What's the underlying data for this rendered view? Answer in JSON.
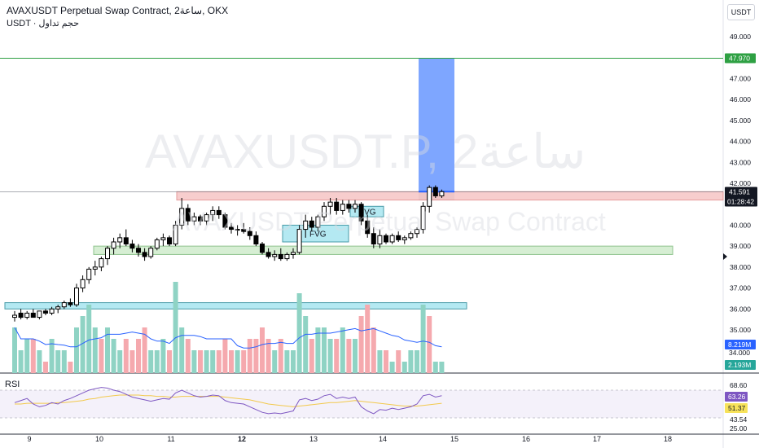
{
  "header": {
    "title": "AVAXUSDT Perpetual Swap Contract, 2ساعة, OKX",
    "volume_label": "USDT · حجم تداول"
  },
  "currency_button": "USDT",
  "watermark": {
    "symbol": "AVAXUSDT.P, 2ساعة",
    "name": "AVAXUSDT Perpetual Swap Contract"
  },
  "rsi_label": "RSI",
  "chart_data": {
    "type": "candlestick",
    "price_axis": {
      "min": 33,
      "max": 50,
      "ticks": [
        35,
        36,
        37,
        38,
        39,
        40,
        41,
        42,
        43,
        44,
        45,
        46,
        47,
        48,
        49
      ],
      "tick_labels": [
        "35.000",
        "36.000",
        "37.000",
        "38.000",
        "39.000",
        "40.000",
        "41.000",
        "42.000",
        "43.000",
        "44.000",
        "45.000",
        "46.000",
        "47.000",
        "48.000",
        "49.000"
      ]
    },
    "x_axis": {
      "labels": [
        "9",
        "10",
        "11",
        "12",
        "13",
        "14",
        "15",
        "16",
        "17",
        "18"
      ],
      "bold_label": "12"
    },
    "candles_ohlc": [
      [
        35.6,
        35.9,
        35.4,
        35.7
      ],
      [
        35.8,
        36.0,
        35.5,
        35.6
      ],
      [
        35.6,
        35.9,
        35.5,
        35.8
      ],
      [
        35.8,
        36.0,
        35.6,
        35.6
      ],
      [
        35.6,
        35.9,
        35.5,
        35.9
      ],
      [
        35.9,
        36.0,
        35.7,
        35.8
      ],
      [
        35.8,
        36.1,
        35.7,
        36.0
      ],
      [
        36.0,
        36.2,
        35.8,
        36.1
      ],
      [
        36.1,
        36.4,
        36.0,
        36.3
      ],
      [
        36.3,
        36.5,
        36.1,
        36.2
      ],
      [
        36.2,
        37.2,
        36.1,
        37.0
      ],
      [
        37.0,
        37.6,
        36.8,
        37.4
      ],
      [
        37.4,
        38.0,
        37.2,
        37.9
      ],
      [
        37.9,
        38.3,
        37.6,
        38.0
      ],
      [
        38.0,
        38.5,
        37.8,
        38.4
      ],
      [
        38.4,
        39.0,
        38.1,
        38.9
      ],
      [
        38.9,
        39.4,
        38.6,
        39.2
      ],
      [
        39.2,
        39.6,
        38.9,
        39.4
      ],
      [
        39.4,
        39.8,
        39.0,
        39.1
      ],
      [
        39.1,
        39.3,
        38.7,
        38.9
      ],
      [
        38.9,
        39.1,
        38.5,
        38.7
      ],
      [
        38.7,
        38.9,
        38.3,
        38.5
      ],
      [
        38.5,
        39.0,
        38.4,
        38.9
      ],
      [
        38.9,
        39.4,
        38.8,
        39.3
      ],
      [
        39.3,
        39.6,
        39.0,
        39.4
      ],
      [
        39.4,
        39.5,
        39.0,
        39.1
      ],
      [
        39.1,
        40.2,
        39.0,
        40.0
      ],
      [
        40.0,
        41.3,
        39.8,
        40.8
      ],
      [
        40.8,
        41.0,
        40.0,
        40.2
      ],
      [
        40.2,
        40.6,
        40.0,
        40.4
      ],
      [
        40.4,
        40.5,
        40.0,
        40.2
      ],
      [
        40.2,
        40.6,
        40.0,
        40.5
      ],
      [
        40.5,
        40.9,
        40.2,
        40.7
      ],
      [
        40.7,
        40.9,
        40.3,
        40.5
      ],
      [
        40.5,
        40.6,
        39.8,
        39.9
      ],
      [
        39.9,
        40.1,
        39.6,
        39.8
      ],
      [
        39.8,
        40.0,
        39.5,
        39.8
      ],
      [
        39.8,
        40.1,
        39.6,
        39.7
      ],
      [
        39.7,
        39.9,
        39.3,
        39.5
      ],
      [
        39.5,
        39.7,
        39.0,
        39.1
      ],
      [
        39.1,
        39.2,
        38.6,
        38.7
      ],
      [
        38.7,
        38.9,
        38.4,
        38.5
      ],
      [
        38.5,
        38.8,
        38.3,
        38.6
      ],
      [
        38.6,
        38.9,
        38.3,
        38.4
      ],
      [
        38.4,
        38.7,
        38.3,
        38.6
      ],
      [
        38.6,
        38.9,
        38.4,
        38.7
      ],
      [
        38.7,
        40.0,
        38.6,
        39.8
      ],
      [
        39.8,
        40.5,
        39.4,
        40.2
      ],
      [
        40.2,
        40.4,
        39.7,
        39.9
      ],
      [
        39.9,
        40.5,
        39.7,
        40.4
      ],
      [
        40.4,
        41.1,
        40.2,
        40.9
      ],
      [
        40.9,
        41.3,
        40.5,
        41.1
      ],
      [
        41.1,
        41.3,
        40.5,
        40.7
      ],
      [
        40.7,
        41.2,
        40.5,
        41.0
      ],
      [
        41.0,
        41.2,
        40.6,
        40.8
      ],
      [
        40.8,
        41.2,
        40.6,
        41.0
      ],
      [
        41.0,
        41.1,
        40.0,
        40.2
      ],
      [
        40.2,
        40.5,
        39.4,
        39.6
      ],
      [
        39.6,
        39.9,
        38.9,
        39.1
      ],
      [
        39.1,
        39.8,
        38.9,
        39.5
      ],
      [
        39.5,
        39.6,
        39.1,
        39.2
      ],
      [
        39.2,
        39.6,
        39.1,
        39.5
      ],
      [
        39.5,
        39.7,
        39.2,
        39.3
      ],
      [
        39.3,
        39.5,
        39.1,
        39.4
      ],
      [
        39.4,
        39.7,
        39.3,
        39.6
      ],
      [
        39.6,
        39.9,
        39.4,
        39.8
      ],
      [
        39.8,
        41.1,
        39.6,
        40.9
      ],
      [
        40.9,
        41.9,
        40.6,
        41.8
      ],
      [
        41.8,
        41.9,
        41.3,
        41.4
      ],
      [
        41.4,
        41.7,
        41.3,
        41.6
      ]
    ],
    "volume": [
      [
        4,
        1
      ],
      [
        2,
        1
      ],
      [
        3,
        1
      ],
      [
        3,
        0
      ],
      [
        2,
        1
      ],
      [
        1,
        0
      ],
      [
        3,
        1
      ],
      [
        2,
        1
      ],
      [
        2,
        1
      ],
      [
        1,
        0
      ],
      [
        4,
        1
      ],
      [
        5,
        1
      ],
      [
        6,
        1
      ],
      [
        4,
        1
      ],
      [
        3,
        0
      ],
      [
        4,
        1
      ],
      [
        3,
        1
      ],
      [
        2,
        1
      ],
      [
        3,
        0
      ],
      [
        2,
        0
      ],
      [
        3,
        0
      ],
      [
        4,
        0
      ],
      [
        2,
        1
      ],
      [
        2,
        1
      ],
      [
        3,
        1
      ],
      [
        2,
        0
      ],
      [
        8,
        1
      ],
      [
        4,
        1
      ],
      [
        3,
        0
      ],
      [
        2,
        1
      ],
      [
        2,
        0
      ],
      [
        2,
        1
      ],
      [
        2,
        1
      ],
      [
        2,
        0
      ],
      [
        3,
        0
      ],
      [
        2,
        0
      ],
      [
        2,
        1
      ],
      [
        2,
        0
      ],
      [
        3,
        0
      ],
      [
        3,
        0
      ],
      [
        4,
        0
      ],
      [
        3,
        0
      ],
      [
        2,
        1
      ],
      [
        3,
        0
      ],
      [
        2,
        1
      ],
      [
        2,
        1
      ],
      [
        7,
        1
      ],
      [
        5,
        1
      ],
      [
        3,
        0
      ],
      [
        4,
        1
      ],
      [
        4,
        1
      ],
      [
        3,
        1
      ],
      [
        3,
        0
      ],
      [
        4,
        1
      ],
      [
        3,
        0
      ],
      [
        3,
        1
      ],
      [
        5,
        0
      ],
      [
        6,
        0
      ],
      [
        4,
        0
      ],
      [
        2,
        1
      ],
      [
        2,
        0
      ],
      [
        1,
        1
      ],
      [
        2,
        0
      ],
      [
        1,
        1
      ],
      [
        2,
        1
      ],
      [
        2,
        1
      ],
      [
        6,
        1
      ],
      [
        5,
        0
      ],
      [
        1,
        1
      ],
      [
        1,
        1
      ]
    ],
    "levels": {
      "target_line": 47.97,
      "current_price": 41.591,
      "countdown": "01:28:42",
      "volume_value": "8.219M",
      "volume_value_2": "2.193M"
    },
    "zones": [
      {
        "kind": "supply",
        "top": 41.6,
        "bottom": 41.2
      },
      {
        "kind": "demand",
        "top": 39.0,
        "bottom": 38.6
      },
      {
        "kind": "support",
        "top": 36.3,
        "bottom": 36.0
      }
    ],
    "fvg_label": "FVG",
    "rsi": {
      "axis_ticks": [
        "68.60",
        "43.54",
        "25.00"
      ],
      "value": "63.26",
      "ma_value": "51.37",
      "overbought": 70,
      "oversold": 30,
      "values": [
        52,
        55,
        58,
        50,
        46,
        48,
        52,
        50,
        55,
        58,
        62,
        66,
        70,
        72,
        74,
        73,
        70,
        68,
        64,
        60,
        58,
        56,
        54,
        56,
        58,
        57,
        66,
        70,
        66,
        62,
        60,
        61,
        63,
        62,
        55,
        52,
        51,
        50,
        46,
        42,
        38,
        36,
        37,
        36,
        38,
        40,
        56,
        58,
        55,
        57,
        62,
        64,
        58,
        60,
        58,
        60,
        46,
        40,
        36,
        42,
        41,
        44,
        42,
        44,
        46,
        50,
        62,
        64,
        60,
        62
      ],
      "ma": [
        50,
        50,
        51,
        51,
        51,
        51,
        51,
        52,
        52,
        53,
        54,
        55,
        57,
        58,
        60,
        61,
        62,
        63,
        63,
        63,
        63,
        62,
        62,
        61,
        61,
        60,
        60,
        61,
        61,
        61,
        61,
        61,
        61,
        61,
        60,
        59,
        58,
        57,
        56,
        54,
        52,
        50,
        49,
        48,
        47,
        46,
        47,
        48,
        49,
        50,
        51,
        52,
        52,
        53,
        54,
        55,
        54,
        53,
        52,
        51,
        50,
        49,
        48,
        47,
        47,
        47,
        48,
        49,
        50,
        51
      ]
    }
  }
}
